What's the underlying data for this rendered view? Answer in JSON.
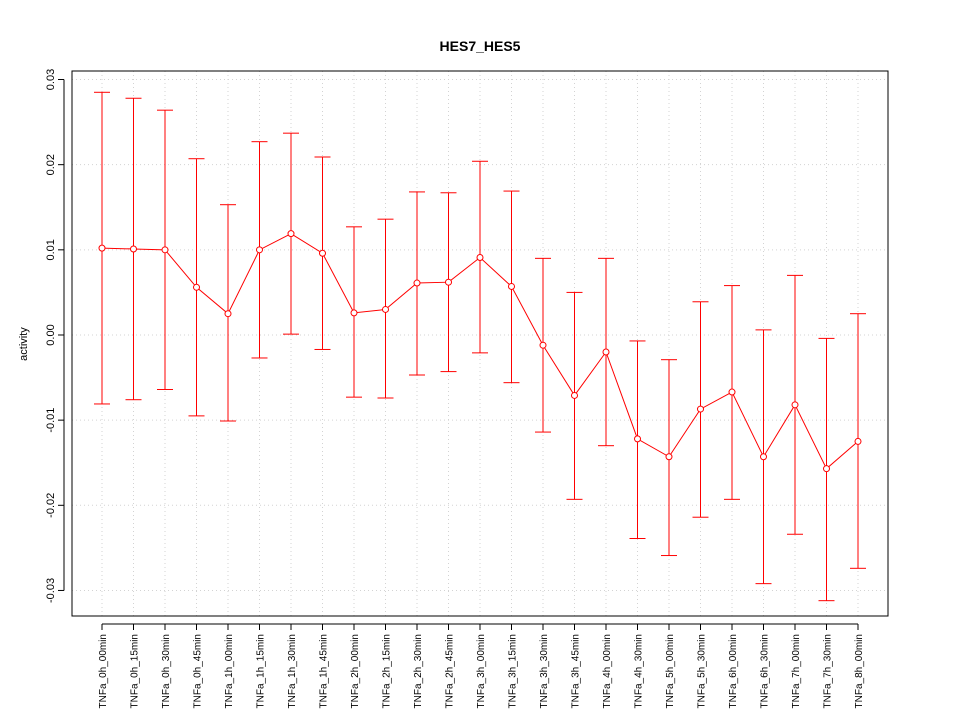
{
  "chart_data": {
    "type": "line",
    "title": "HES7_HES5",
    "xlabel": "",
    "ylabel": "activity",
    "ylim": [
      -0.033,
      0.031
    ],
    "yticks": [
      -0.03,
      -0.02,
      -0.01,
      0.0,
      0.01,
      0.02,
      0.03
    ],
    "ytick_labels": [
      "-0.03",
      "-0.02",
      "-0.01",
      "0.00",
      "0.01",
      "0.02",
      "0.03"
    ],
    "grid": true,
    "color": "#ff0000",
    "categories": [
      "TNFa_0h_00min",
      "TNFa_0h_15min",
      "TNFa_0h_30min",
      "TNFa_0h_45min",
      "TNFa_1h_00min",
      "TNFa_1h_15min",
      "TNFa_1h_30min",
      "TNFa_1h_45min",
      "TNFa_2h_00min",
      "TNFa_2h_15min",
      "TNFa_2h_30min",
      "TNFa_2h_45min",
      "TNFa_3h_00min",
      "TNFa_3h_15min",
      "TNFa_3h_30min",
      "TNFa_3h_45min",
      "TNFa_4h_00min",
      "TNFa_4h_30min",
      "TNFa_5h_00min",
      "TNFa_5h_30min",
      "TNFa_6h_00min",
      "TNFa_6h_30min",
      "TNFa_7h_00min",
      "TNFa_7h_30min",
      "TNFa_8h_00min"
    ],
    "values": [
      0.0102,
      0.0101,
      0.01,
      0.0056,
      0.0025,
      0.01,
      0.0119,
      0.0096,
      0.0026,
      0.003,
      0.0061,
      0.0062,
      0.0091,
      0.0057,
      -0.0012,
      -0.0071,
      -0.002,
      -0.0122,
      -0.0143,
      -0.0087,
      -0.0067,
      -0.0143,
      -0.0082,
      -0.0157,
      -0.0125
    ],
    "upper": [
      0.0285,
      0.0278,
      0.0264,
      0.0207,
      0.0153,
      0.0227,
      0.0237,
      0.0209,
      0.0127,
      0.0136,
      0.0168,
      0.0167,
      0.0204,
      0.0169,
      0.009,
      0.005,
      0.009,
      -0.0007,
      -0.0029,
      0.0039,
      0.0058,
      0.0006,
      0.007,
      -0.0004,
      0.0025
    ],
    "lower": [
      -0.0081,
      -0.0076,
      -0.0064,
      -0.0095,
      -0.0101,
      -0.0027,
      0.0001,
      -0.0017,
      -0.0073,
      -0.0074,
      -0.0047,
      -0.0043,
      -0.0021,
      -0.0056,
      -0.0114,
      -0.0193,
      -0.013,
      -0.0239,
      -0.0259,
      -0.0214,
      -0.0193,
      -0.0292,
      -0.0234,
      -0.0312,
      -0.0274
    ]
  }
}
